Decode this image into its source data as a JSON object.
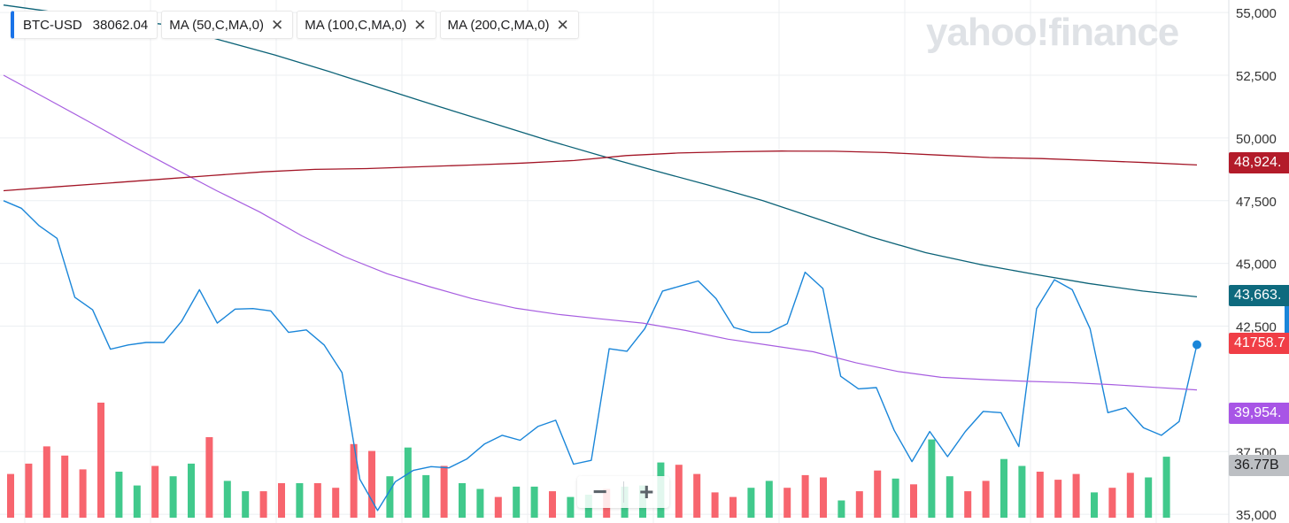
{
  "legend": {
    "symbol": "BTC-USD",
    "price": "38062.04",
    "ma50": "MA (50,C,MA,0)",
    "ma100": "MA (100,C,MA,0)",
    "ma200": "MA (200,C,MA,0)",
    "close_glyph": "✕"
  },
  "watermark": "yahoo!finance",
  "zoom": {
    "minus": "−",
    "plus": "+"
  },
  "tags": {
    "ma200": "48,924.",
    "ma100": "43,663.",
    "price": "41758.7",
    "ma50": "39,954.",
    "volume": "36.77B"
  },
  "colors": {
    "price": "#1a86d9",
    "ma50": "#a75ee0",
    "ma100": "#0b6277",
    "ma200": "#a31526",
    "vol_up": "#41c98c",
    "vol_down": "#f7656e",
    "grid": "#eceff2",
    "tag_ma200": "#b31b2a",
    "tag_ma100": "#0e6a7e",
    "tag_price": "#f03e46",
    "tag_ma50": "#a855e6",
    "tag_volume": "#bcbfc3"
  },
  "chart_data": {
    "type": "line",
    "ylim": [
      34900,
      55500
    ],
    "y_ticks": [
      "55,000",
      "52,500",
      "50,000",
      "47,500",
      "45,000",
      "42,500",
      "37,500",
      "35,000"
    ],
    "y_tick_values": [
      55000,
      52500,
      50000,
      47500,
      45000,
      42500,
      37500,
      35000
    ],
    "series": [
      {
        "name": "BTC-USD",
        "values": [
          47500,
          47200,
          46500,
          46000,
          43650,
          43150,
          41580,
          41750,
          41850,
          41850,
          42700,
          43950,
          42620,
          43180,
          43200,
          43110,
          42250,
          42350,
          41750,
          40650,
          36400,
          35150,
          36300,
          36750,
          36900,
          36850,
          37200,
          37800,
          38150,
          37950,
          38500,
          38750,
          37000,
          37150,
          41600,
          41500,
          42400,
          43900,
          44100,
          44300,
          43600,
          42450,
          42250,
          42250,
          42600,
          44650,
          44000,
          40500,
          40000,
          40050,
          38350,
          37100,
          38300,
          37300,
          38300,
          39100,
          39050,
          37700,
          43200,
          44350,
          43950,
          42400,
          39050,
          39250,
          38450,
          38150,
          38700,
          41760
        ]
      },
      {
        "name": "MA (50,C,MA,0)",
        "values": [
          52500,
          51580,
          50650,
          49700,
          48790,
          47900,
          47060,
          46100,
          45270,
          44590,
          44070,
          43590,
          43220,
          42970,
          42790,
          42620,
          42330,
          41980,
          41730,
          41480,
          41040,
          40690,
          40460,
          40370,
          40300,
          40250,
          40170,
          40060,
          39960
        ]
      },
      {
        "name": "MA (100,C,MA,0)",
        "values": [
          55300,
          55000,
          54750,
          54520,
          53900,
          53310,
          52650,
          51960,
          51270,
          50600,
          49930,
          49300,
          48700,
          48120,
          47500,
          46780,
          46050,
          45430,
          44960,
          44570,
          44200,
          43900,
          43670
        ]
      },
      {
        "name": "MA (200,C,MA,0)",
        "values": [
          47900,
          48050,
          48200,
          48350,
          48500,
          48650,
          48750,
          48780,
          48850,
          48920,
          49000,
          49100,
          49300,
          49400,
          49450,
          49480,
          49470,
          49420,
          49320,
          49220,
          49180,
          49100,
          49020,
          48924
        ]
      }
    ],
    "volume": {
      "label": "36.77B",
      "bars": [
        {
          "v": 0.38,
          "d": -1
        },
        {
          "v": 0.47,
          "d": -1
        },
        {
          "v": 0.62,
          "d": -1
        },
        {
          "v": 0.54,
          "d": -1
        },
        {
          "v": 0.42,
          "d": -1
        },
        {
          "v": 1.0,
          "d": -1
        },
        {
          "v": 0.4,
          "d": 1
        },
        {
          "v": 0.28,
          "d": 1
        },
        {
          "v": 0.45,
          "d": -1
        },
        {
          "v": 0.36,
          "d": 1
        },
        {
          "v": 0.47,
          "d": 1
        },
        {
          "v": 0.7,
          "d": -1
        },
        {
          "v": 0.32,
          "d": 1
        },
        {
          "v": 0.23,
          "d": 1
        },
        {
          "v": 0.23,
          "d": -1
        },
        {
          "v": 0.3,
          "d": -1
        },
        {
          "v": 0.3,
          "d": 1
        },
        {
          "v": 0.3,
          "d": -1
        },
        {
          "v": 0.26,
          "d": -1
        },
        {
          "v": 0.64,
          "d": -1
        },
        {
          "v": 0.58,
          "d": -1
        },
        {
          "v": 0.36,
          "d": 1
        },
        {
          "v": 0.61,
          "d": 1
        },
        {
          "v": 0.37,
          "d": 1
        },
        {
          "v": 0.45,
          "d": -1
        },
        {
          "v": 0.3,
          "d": 1
        },
        {
          "v": 0.25,
          "d": 1
        },
        {
          "v": 0.18,
          "d": -1
        },
        {
          "v": 0.27,
          "d": 1
        },
        {
          "v": 0.27,
          "d": 1
        },
        {
          "v": 0.23,
          "d": -1
        },
        {
          "v": 0.18,
          "d": 1
        },
        {
          "v": 0.2,
          "d": 1
        },
        {
          "v": 0.25,
          "d": -1
        },
        {
          "v": 0.27,
          "d": 1
        },
        {
          "v": 0.28,
          "d": 1
        },
        {
          "v": 0.48,
          "d": 1
        },
        {
          "v": 0.46,
          "d": -1
        },
        {
          "v": 0.38,
          "d": -1
        },
        {
          "v": 0.22,
          "d": -1
        },
        {
          "v": 0.18,
          "d": -1
        },
        {
          "v": 0.26,
          "d": 1
        },
        {
          "v": 0.32,
          "d": 1
        },
        {
          "v": 0.26,
          "d": -1
        },
        {
          "v": 0.37,
          "d": -1
        },
        {
          "v": 0.35,
          "d": -1
        },
        {
          "v": 0.15,
          "d": 1
        },
        {
          "v": 0.23,
          "d": -1
        },
        {
          "v": 0.41,
          "d": -1
        },
        {
          "v": 0.34,
          "d": 1
        },
        {
          "v": 0.29,
          "d": -1
        },
        {
          "v": 0.68,
          "d": 1
        },
        {
          "v": 0.36,
          "d": 1
        },
        {
          "v": 0.23,
          "d": -1
        },
        {
          "v": 0.32,
          "d": -1
        },
        {
          "v": 0.51,
          "d": 1
        },
        {
          "v": 0.45,
          "d": 1
        },
        {
          "v": 0.4,
          "d": -1
        },
        {
          "v": 0.33,
          "d": -1
        },
        {
          "v": 0.38,
          "d": -1
        },
        {
          "v": 0.22,
          "d": 1
        },
        {
          "v": 0.26,
          "d": -1
        },
        {
          "v": 0.39,
          "d": -1
        },
        {
          "v": 0.35,
          "d": 1
        },
        {
          "v": 0.53,
          "d": 1
        }
      ]
    },
    "grid": true,
    "legend_position": "top-left"
  }
}
